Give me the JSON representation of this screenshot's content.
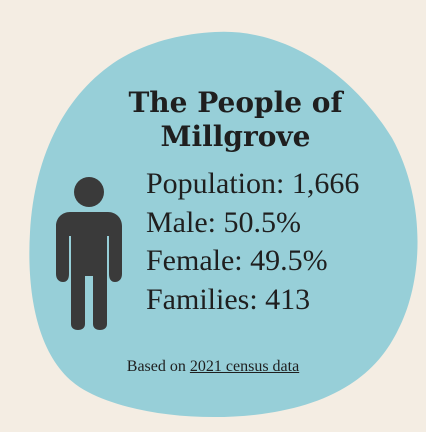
{
  "title": "The People of Millgrove",
  "stats": [
    "Population: 1,666",
    "Male: 50.5%",
    "Female: 49.5%",
    "Families: 413"
  ],
  "note": {
    "prefix": "Based on",
    "link_text": "2021 census data"
  },
  "icons": {
    "person": "person-icon"
  },
  "colors": {
    "background": "#f4ede3",
    "blob": "#97cfd8",
    "text": "#1f1f1f",
    "icon": "#3a3a3a"
  }
}
